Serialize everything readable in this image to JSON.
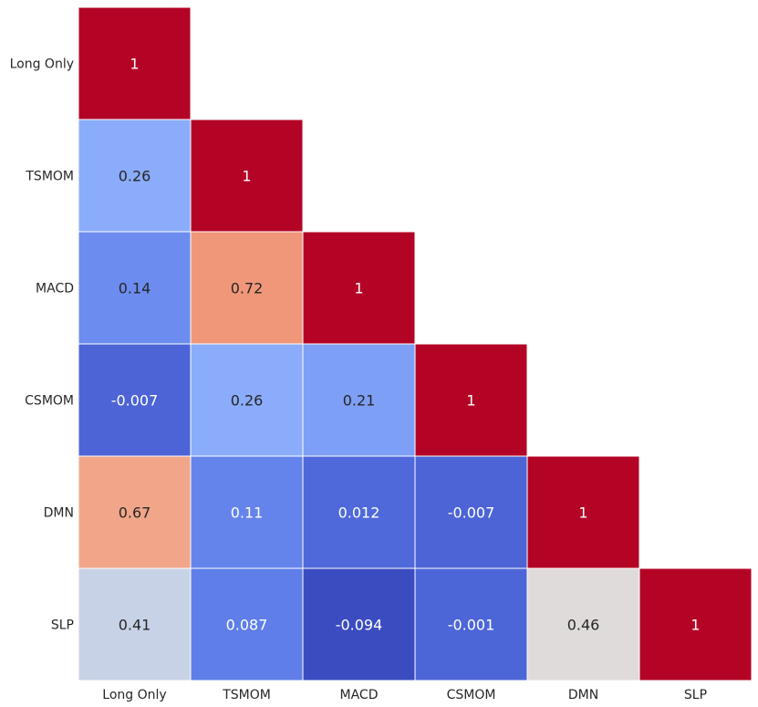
{
  "chart_data": {
    "type": "heatmap",
    "title": "",
    "xlabel": "",
    "ylabel": "",
    "mask": "upper-triangle",
    "colormap": "coolwarm",
    "color_range": [
      -0.094,
      1
    ],
    "grid_lines": true,
    "colorbar": false,
    "row_labels": [
      "Long Only",
      "TSMOM",
      "MACD",
      "CSMOM",
      "DMN",
      "SLP"
    ],
    "col_labels": [
      "Long Only",
      "TSMOM",
      "MACD",
      "CSMOM",
      "DMN",
      "SLP"
    ],
    "values": [
      [
        1,
        null,
        null,
        null,
        null,
        null
      ],
      [
        0.26,
        1,
        null,
        null,
        null,
        null
      ],
      [
        0.14,
        0.72,
        1,
        null,
        null,
        null
      ],
      [
        -0.007,
        0.26,
        0.21,
        1,
        null,
        null
      ],
      [
        0.67,
        0.11,
        0.012,
        -0.007,
        1,
        null
      ],
      [
        0.41,
        0.087,
        -0.094,
        -0.001,
        0.46,
        1
      ]
    ],
    "labels": [
      [
        "1",
        null,
        null,
        null,
        null,
        null
      ],
      [
        "0.26",
        "1",
        null,
        null,
        null,
        null
      ],
      [
        "0.14",
        "0.72",
        "1",
        null,
        null,
        null
      ],
      [
        "-0.007",
        "0.26",
        "0.21",
        "1",
        null,
        null
      ],
      [
        "0.67",
        "0.11",
        "0.012",
        "-0.007",
        "1",
        null
      ],
      [
        "0.41",
        "0.087",
        "-0.094",
        "-0.001",
        "0.46",
        "1"
      ]
    ]
  }
}
